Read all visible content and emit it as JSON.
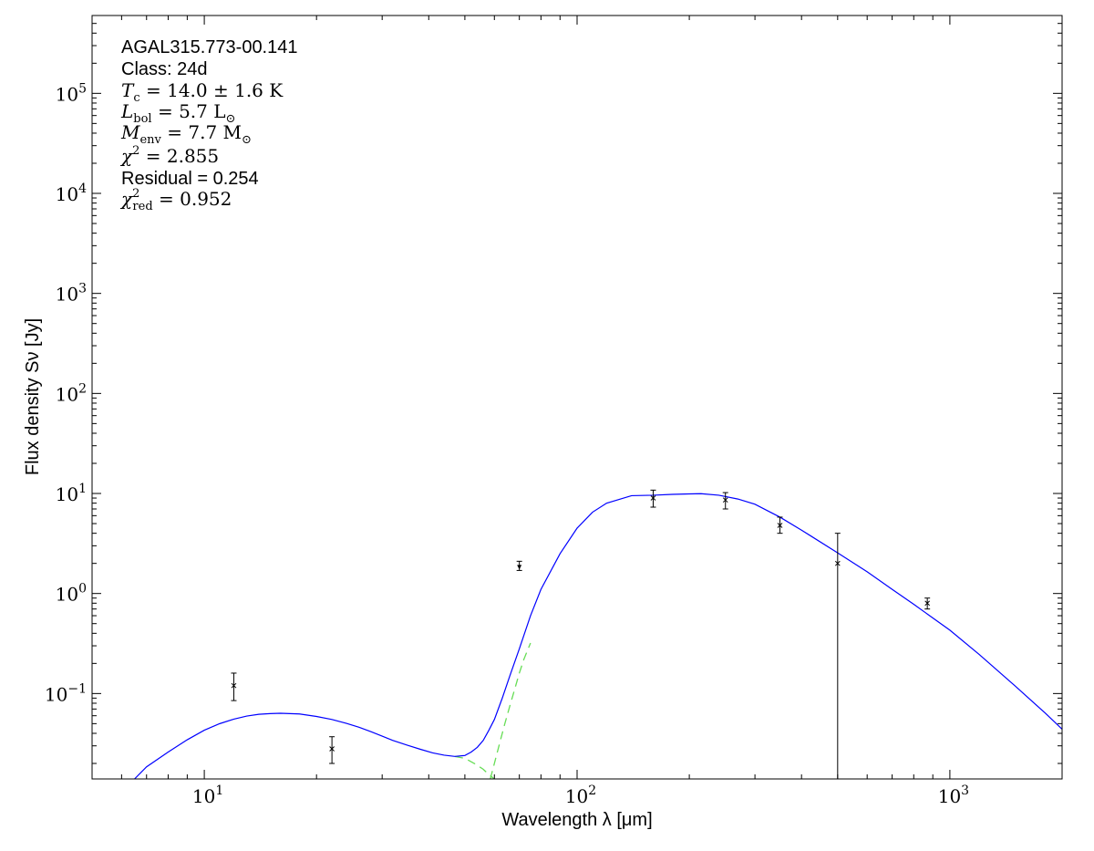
{
  "chart_data": {
    "type": "scatter",
    "xscale": "log",
    "yscale": "log",
    "xlim": [
      5,
      2000
    ],
    "ylim": [
      0.014,
      600000
    ],
    "xlabel": "Wavelength λ [μm]",
    "ylabel": "Flux density Sν [Jy]",
    "xticks": [
      {
        "value": 10,
        "base": "10",
        "exp": "1"
      },
      {
        "value": 100,
        "base": "10",
        "exp": "2"
      },
      {
        "value": 1000,
        "base": "10",
        "exp": "3"
      }
    ],
    "yticks": [
      {
        "value": 0.1,
        "base": "10",
        "exp": "−1"
      },
      {
        "value": 1,
        "base": "10",
        "exp": "0"
      },
      {
        "value": 10,
        "base": "10",
        "exp": "1"
      },
      {
        "value": 100,
        "base": "10",
        "exp": "2"
      },
      {
        "value": 1000,
        "base": "10",
        "exp": "3"
      },
      {
        "value": 10000,
        "base": "10",
        "exp": "4"
      },
      {
        "value": 100000,
        "base": "10",
        "exp": "5"
      }
    ],
    "annotations": {
      "source": "AGAL315.773-00.141",
      "class": "Class: 24d",
      "tc": {
        "sym": "T",
        "sub": "c",
        "val": " = 14.0 ± 1.6 K"
      },
      "lbol": {
        "sym": "L",
        "sub": "bol",
        "val": " = 5.7 L",
        "valsub": "⊙"
      },
      "menv": {
        "sym": "M",
        "sub": "env",
        "val": " = 7.7 M",
        "valsub": "⊙"
      },
      "chi2": {
        "sym": "χ",
        "sup": "2",
        "val": " = 2.855"
      },
      "residual": "Residual = 0.254",
      "chi2red": {
        "sym": "χ",
        "sup": "2",
        "sub": "red",
        "val": " = 0.952"
      }
    },
    "points": [
      {
        "x": 12,
        "y": 0.12,
        "ylo": 0.085,
        "yhi": 0.16,
        "upper_limit": false
      },
      {
        "x": 22,
        "y": 0.028,
        "ylo": 0.02,
        "yhi": 0.037,
        "upper_limit": false
      },
      {
        "x": 70,
        "y": 1.85,
        "ylo": 1.7,
        "yhi": 2.1,
        "upper_limit": true
      },
      {
        "x": 160,
        "y": 9.0,
        "ylo": 7.3,
        "yhi": 10.8,
        "upper_limit": false
      },
      {
        "x": 250,
        "y": 8.6,
        "ylo": 7.0,
        "yhi": 10.2,
        "upper_limit": false
      },
      {
        "x": 350,
        "y": 4.8,
        "ylo": 4.0,
        "yhi": 5.8,
        "upper_limit": false
      },
      {
        "x": 500,
        "y": 2.0,
        "ylo": 0.014,
        "yhi": 4.0,
        "upper_limit": false
      },
      {
        "x": 870,
        "y": 0.8,
        "ylo": 0.7,
        "yhi": 0.9,
        "upper_limit": false
      }
    ],
    "fit_curve": {
      "name": "total",
      "color": "#0000ff",
      "x": [
        6.5,
        7,
        8,
        9,
        10,
        11,
        12,
        13,
        14,
        15,
        16,
        18,
        20,
        22,
        24,
        26,
        28,
        30,
        32,
        35,
        38,
        41,
        44,
        47,
        50,
        52,
        54,
        56,
        58,
        60,
        63,
        66,
        70,
        75,
        80,
        90,
        100,
        110,
        120,
        140,
        160,
        180,
        200,
        215,
        240,
        270,
        300,
        350,
        400,
        500,
        600,
        700,
        800,
        1000,
        1200,
        1500,
        1800,
        2000
      ],
      "y": [
        0.014,
        0.0185,
        0.026,
        0.0345,
        0.043,
        0.05,
        0.0555,
        0.0595,
        0.062,
        0.063,
        0.0635,
        0.0625,
        0.059,
        0.055,
        0.0505,
        0.046,
        0.0415,
        0.0375,
        0.034,
        0.0305,
        0.0277,
        0.0255,
        0.0242,
        0.0235,
        0.024,
        0.026,
        0.029,
        0.034,
        0.043,
        0.055,
        0.09,
        0.15,
        0.28,
        0.6,
        1.1,
        2.5,
        4.5,
        6.5,
        8.0,
        9.5,
        9.6,
        9.8,
        9.9,
        9.95,
        9.6,
        8.8,
        7.8,
        5.8,
        4.3,
        2.55,
        1.65,
        1.1,
        0.78,
        0.43,
        0.245,
        0.118,
        0.064,
        0.044
      ]
    },
    "warm_component": {
      "name": "warm",
      "color": "#66dd55",
      "x": [
        47,
        50,
        53,
        56,
        58,
        60
      ],
      "y": [
        0.0235,
        0.0225,
        0.02,
        0.0175,
        0.0155,
        0.014
      ]
    },
    "cold_component": {
      "name": "cold",
      "color": "#66dd55",
      "x": [
        58.5,
        60,
        62,
        64,
        66,
        68,
        70,
        72,
        75
      ],
      "y": [
        0.014,
        0.02,
        0.032,
        0.05,
        0.075,
        0.11,
        0.16,
        0.22,
        0.32
      ]
    }
  }
}
